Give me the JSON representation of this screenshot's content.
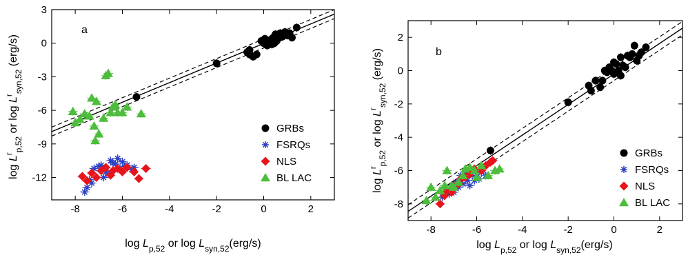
{
  "chart_data": [
    {
      "panel": "a",
      "type": "scatter",
      "title": "",
      "xlabel": "log L_{p,52} or log L_{syn,52}(erg/s)",
      "ylabel": "log L^r_{p,52} or log L^r_{syn,52} (erg/s)",
      "xlim": [
        -9,
        3
      ],
      "ylim": [
        -14,
        3
      ],
      "xticks": [
        -8,
        -6,
        -4,
        -2,
        0,
        2
      ],
      "yticks": [
        -12,
        -9,
        -6,
        -3,
        0,
        3
      ],
      "xtick_labels": [
        "-8",
        "-6",
        "-4",
        "-2",
        "0",
        "2"
      ],
      "ytick_labels": [
        "-12",
        "-9",
        "-6",
        "-3",
        "0",
        "3"
      ],
      "grid": false,
      "legend_position": "bottom-right",
      "fit_line": {
        "x": [
          -9,
          3
        ],
        "y": [
          -7.9,
          2.6
        ]
      },
      "band_lines": [
        {
          "x": [
            -9,
            3
          ],
          "y": [
            -7.5,
            3.0
          ]
        },
        {
          "x": [
            -9,
            3
          ],
          "y": [
            -8.3,
            2.2
          ]
        }
      ],
      "series": [
        {
          "name": "GRBs",
          "marker": "circle",
          "color": "#000000",
          "x": [
            -5.4,
            -2.0,
            -0.7,
            -0.6,
            -0.6,
            -0.3,
            -0.1,
            0.0,
            0.05,
            0.1,
            0.2,
            0.3,
            0.35,
            0.4,
            0.5,
            0.55,
            0.6,
            0.7,
            0.8,
            0.9,
            1.0,
            1.1,
            1.2,
            1.4,
            0.15,
            0.45,
            -0.45
          ],
          "y": [
            -4.8,
            -1.8,
            -0.8,
            -1.0,
            -0.6,
            -1.0,
            0.2,
            0.0,
            0.4,
            0.1,
            0.2,
            0.3,
            -0.1,
            0.5,
            0.8,
            0.2,
            0.4,
            0.9,
            0.6,
            1.0,
            0.7,
            0.9,
            0.5,
            1.4,
            -0.2,
            0.0,
            -1.2
          ]
        },
        {
          "name": "FSRQs",
          "marker": "asterisk",
          "color": "#2b3fc4",
          "x": [
            -7.6,
            -7.4,
            -7.2,
            -7.0,
            -6.9,
            -6.7,
            -6.5,
            -6.3,
            -6.2,
            -6.1,
            -6.0,
            -5.9,
            -5.8,
            -5.6,
            -5.5,
            -7.3,
            -6.6,
            -6.4,
            -6.8,
            -7.5
          ],
          "y": [
            -13.3,
            -12.2,
            -11.2,
            -11.0,
            -10.9,
            -11.5,
            -10.5,
            -10.8,
            -10.3,
            -11.2,
            -10.6,
            -11.0,
            -10.9,
            -11.3,
            -11.1,
            -12.5,
            -11.7,
            -10.7,
            -12.0,
            -12.9
          ]
        },
        {
          "name": "NLS",
          "marker": "diamond",
          "color": "#e8141c",
          "x": [
            -7.7,
            -7.5,
            -7.3,
            -7.1,
            -6.9,
            -6.7,
            -6.5,
            -6.2,
            -6.0,
            -5.8,
            -5.5,
            -5.3,
            -5.0,
            -6.4
          ],
          "y": [
            -11.9,
            -12.3,
            -11.6,
            -12.0,
            -11.4,
            -11.1,
            -11.8,
            -11.2,
            -11.5,
            -11.1,
            -11.5,
            -12.1,
            -11.2,
            -11.4
          ]
        },
        {
          "name": "BL LAC",
          "marker": "triangle",
          "color": "#4cbd3c",
          "x": [
            -8.1,
            -8.0,
            -7.8,
            -7.6,
            -7.4,
            -7.3,
            -7.2,
            -7.1,
            -7.0,
            -6.8,
            -6.7,
            -6.6,
            -6.5,
            -6.4,
            -6.3,
            -6.2,
            -6.0,
            -5.8,
            -5.2,
            -7.15
          ],
          "y": [
            -6.1,
            -7.1,
            -6.8,
            -6.3,
            -6.5,
            -4.9,
            -7.4,
            -5.2,
            -8.1,
            -6.7,
            -2.9,
            -2.7,
            -6.2,
            -5.7,
            -5.5,
            -6.2,
            -6.2,
            -5.7,
            -6.3,
            -8.7
          ]
        }
      ]
    },
    {
      "panel": "b",
      "type": "scatter",
      "title": "",
      "xlabel": "log L_{p,52} or log L_{syn,52}(erg/s)",
      "ylabel": "log L^r_{p,52} or log L^r_{syn,52} (erg/s)",
      "xlim": [
        -9,
        3
      ],
      "ylim": [
        -9,
        3
      ],
      "xticks": [
        -8,
        -6,
        -4,
        -2,
        0,
        2
      ],
      "yticks": [
        -8,
        -6,
        -4,
        -2,
        0,
        2
      ],
      "xtick_labels": [
        "-8",
        "-6",
        "-4",
        "-2",
        "0",
        "2"
      ],
      "ytick_labels": [
        "-8",
        "-6",
        "-4",
        "-2",
        "0",
        "2"
      ],
      "grid": false,
      "legend_position": "bottom-right",
      "fit_line": {
        "x": [
          -9,
          3
        ],
        "y": [
          -8.45,
          2.55
        ]
      },
      "band_lines": [
        {
          "x": [
            -9,
            3
          ],
          "y": [
            -8.05,
            2.95
          ]
        },
        {
          "x": [
            -9,
            3
          ],
          "y": [
            -8.85,
            2.15
          ]
        }
      ],
      "series": [
        {
          "name": "GRBs",
          "marker": "circle",
          "color": "#000000",
          "x": [
            -5.4,
            -2.0,
            -1.1,
            -1.0,
            -0.8,
            -0.6,
            -0.5,
            -0.4,
            -0.3,
            -0.2,
            -0.1,
            0.0,
            0.1,
            0.2,
            0.3,
            0.4,
            0.5,
            0.6,
            0.7,
            0.8,
            0.9,
            1.0,
            1.1,
            1.2,
            1.4,
            0.0,
            0.3
          ],
          "y": [
            -4.8,
            -1.9,
            -0.9,
            -1.2,
            -0.6,
            -1.0,
            -0.6,
            0.0,
            -0.1,
            0.2,
            0.0,
            0.5,
            0.4,
            0.0,
            0.8,
            0.3,
            0.2,
            0.9,
            0.8,
            1.0,
            1.5,
            0.6,
            0.9,
            1.1,
            1.4,
            -0.2,
            -0.3
          ]
        },
        {
          "name": "FSRQs",
          "marker": "asterisk",
          "color": "#2b3fc4",
          "x": [
            -7.5,
            -7.3,
            -7.1,
            -6.9,
            -6.7,
            -6.5,
            -6.4,
            -6.3,
            -6.2,
            -6.1,
            -6.0,
            -5.9,
            -5.8,
            -5.6,
            -7.0,
            -6.6,
            -6.8,
            -7.2
          ],
          "y": [
            -7.6,
            -7.1,
            -6.9,
            -6.7,
            -6.3,
            -6.1,
            -6.6,
            -6.9,
            -6.3,
            -6.6,
            -6.2,
            -6.5,
            -6.1,
            -6.3,
            -7.3,
            -6.8,
            -7.0,
            -7.4
          ]
        },
        {
          "name": "NLS",
          "marker": "diamond",
          "color": "#e8141c",
          "x": [
            -7.6,
            -7.4,
            -7.3,
            -7.1,
            -7.0,
            -6.8,
            -6.7,
            -6.5,
            -6.3,
            -6.1,
            -5.8,
            -5.6,
            -5.4,
            -5.3
          ],
          "y": [
            -8.0,
            -7.5,
            -7.2,
            -7.3,
            -6.9,
            -6.8,
            -6.5,
            -6.4,
            -6.2,
            -5.9,
            -6.0,
            -5.7,
            -5.5,
            -5.4
          ]
        },
        {
          "name": "BL LAC",
          "marker": "triangle",
          "color": "#4cbd3c",
          "x": [
            -8.2,
            -8.0,
            -7.8,
            -7.6,
            -7.4,
            -7.3,
            -7.1,
            -7.0,
            -6.8,
            -6.6,
            -6.5,
            -6.3,
            -6.1,
            -6.0,
            -5.8,
            -5.5,
            -5.2,
            -5.0
          ],
          "y": [
            -7.8,
            -7.0,
            -7.6,
            -7.2,
            -6.9,
            -6.0,
            -6.9,
            -7.0,
            -6.7,
            -6.3,
            -5.9,
            -5.8,
            -6.0,
            -6.4,
            -5.7,
            -6.3,
            -6.0,
            -5.9
          ]
        }
      ]
    }
  ]
}
